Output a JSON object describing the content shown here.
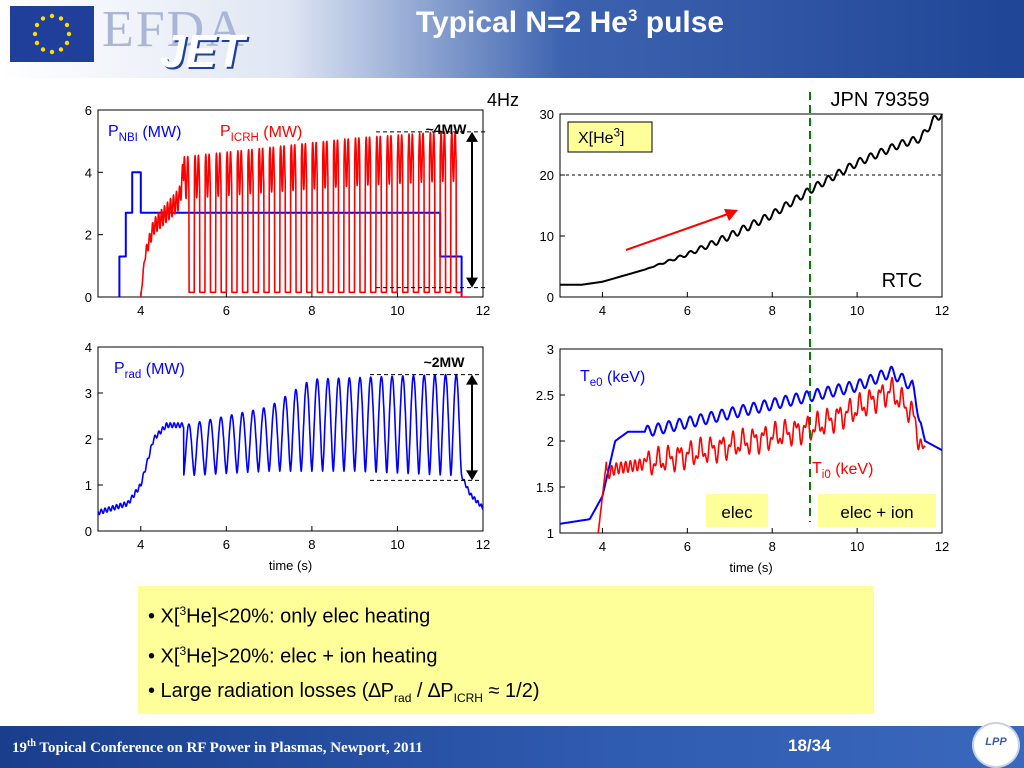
{
  "slide": {
    "title_prefix": "Typical N=2 He",
    "title_sup": "3",
    "title_suffix": " pulse",
    "logo": {
      "efda": "EFDA",
      "jet": "JET"
    },
    "colors": {
      "header_dark": "#1f4596",
      "notes_bg": "#ffff99",
      "red": "#ff0000",
      "blue": "#0000ff",
      "green": "#008000"
    },
    "footer": {
      "conf_num": "19",
      "conf_sup": "th",
      "conf_text": " Topical Conference on RF Power in Plasmas, Newport, 2011",
      "page": "18/34",
      "logo_text": "LPP"
    },
    "notes": [
      {
        "a": "• X[",
        "sup": "3",
        "b": "He]<20%: only elec heating"
      },
      {
        "a": "• X[",
        "sup": "3",
        "b": "He]>20%: elec + ion heating"
      },
      {
        "a": "• Large radiation losses (∆P",
        "sub1": "rad",
        "b": " / ∆P",
        "sub2": "ICRH",
        "c": " ≈ 1/2)"
      }
    ]
  },
  "chart_data": [
    {
      "type": "line",
      "id": "power",
      "xlim": [
        3,
        12
      ],
      "ylim": [
        0,
        6
      ],
      "xticks": [
        4,
        6,
        8,
        10,
        12
      ],
      "yticks": [
        0,
        2,
        4,
        6
      ],
      "series": [
        {
          "name": "P_NBI (MW)",
          "color": "#0000ff",
          "points": [
            [
              3.5,
              0
            ],
            [
              3.5,
              1.3
            ],
            [
              3.65,
              1.3
            ],
            [
              3.65,
              2.7
            ],
            [
              3.8,
              2.7
            ],
            [
              3.8,
              4.0
            ],
            [
              4.0,
              4.0
            ],
            [
              4.0,
              2.7
            ],
            [
              4.2,
              2.7
            ],
            [
              4.2,
              2.7
            ],
            [
              11.0,
              2.7
            ],
            [
              11.0,
              1.3
            ],
            [
              11.5,
              1.3
            ],
            [
              11.5,
              0
            ]
          ]
        },
        {
          "name": "P_ICRH (MW)",
          "color": "#ff0000",
          "modulated": true,
          "envelope": [
            [
              4.0,
              0
            ],
            [
              4.1,
              1.5
            ],
            [
              4.3,
              2.5
            ],
            [
              4.6,
              3.0
            ],
            [
              4.9,
              3.5
            ],
            [
              5.0,
              4.5
            ],
            [
              7.0,
              4.8
            ],
            [
              9.0,
              5.1
            ],
            [
              11.0,
              5.3
            ],
            [
              11.6,
              5.3
            ]
          ],
          "mod_start": 5.0,
          "mod_end": 11.5,
          "mod_hz": 4
        }
      ],
      "annotations": {
        "legend_nbi": "P",
        "legend_nbi_sub": "NBI",
        "legend_nbi_unit": " (MW)",
        "legend_icrh": "P",
        "legend_icrh_sub": "ICRH",
        "legend_icrh_unit": " (MW)",
        "arrow_label": "~4MW",
        "freq_label": "4Hz"
      }
    },
    {
      "type": "line",
      "id": "x_he3",
      "xlim": [
        3,
        12
      ],
      "ylim": [
        0,
        30
      ],
      "xticks": [
        4,
        6,
        8,
        10,
        12
      ],
      "yticks": [
        0,
        10,
        20,
        30
      ],
      "hline": 20,
      "series": [
        {
          "name": "X[He3]",
          "color": "#000000",
          "points": [
            [
              3.0,
              2
            ],
            [
              3.5,
              2
            ],
            [
              4.0,
              2.5
            ],
            [
              5.0,
              4.5
            ],
            [
              6.0,
              7
            ],
            [
              7.0,
              10
            ],
            [
              8.0,
              13.5
            ],
            [
              9.0,
              18
            ],
            [
              10.0,
              22
            ],
            [
              11.0,
              25
            ],
            [
              11.5,
              26
            ],
            [
              11.8,
              29
            ],
            [
              12.0,
              30
            ]
          ]
        }
      ],
      "annotations": {
        "label": "X[He",
        "label_sup": "3",
        "label_end": "]",
        "jpn": "JPN 79359",
        "rtc": "RTC"
      }
    },
    {
      "type": "line",
      "id": "prad",
      "xlim": [
        3,
        12
      ],
      "ylim": [
        0,
        4
      ],
      "xticks": [
        4,
        6,
        8,
        10,
        12
      ],
      "yticks": [
        0,
        1,
        2,
        3,
        4
      ],
      "xlabel": "time (s)",
      "series": [
        {
          "name": "P_rad (MW)",
          "color": "#0000ff",
          "envelope_high": [
            [
              3.0,
              0.4
            ],
            [
              3.7,
              0.6
            ],
            [
              4.0,
              1.0
            ],
            [
              4.3,
              2.0
            ],
            [
              4.6,
              2.3
            ],
            [
              4.9,
              2.3
            ],
            [
              5.0,
              2.3
            ],
            [
              7.0,
              2.7
            ],
            [
              8.0,
              3.3
            ],
            [
              11.0,
              3.4
            ],
            [
              11.5,
              3.4
            ]
          ],
          "envelope_low": [
            [
              5.0,
              1.2
            ],
            [
              7.0,
              1.3
            ],
            [
              9.0,
              1.3
            ],
            [
              11.5,
              1.2
            ]
          ],
          "mod_start": 5.0,
          "mod_end": 11.5,
          "end_points": [
            [
              11.5,
              1.2
            ],
            [
              11.7,
              0.8
            ],
            [
              12.0,
              0.5
            ]
          ]
        }
      ],
      "annotations": {
        "legend": "P",
        "legend_sub": "rad",
        "legend_unit": " (MW)",
        "arrow_label": "~2MW"
      }
    },
    {
      "type": "line",
      "id": "temps",
      "xlim": [
        3,
        12
      ],
      "ylim": [
        1,
        3
      ],
      "xticks": [
        4,
        6,
        8,
        10,
        12
      ],
      "yticks": [
        1,
        1.5,
        2,
        2.5,
        3
      ],
      "ytick_labels": [
        "1",
        "1.5",
        "2",
        "2.5",
        "3"
      ],
      "xlabel": "time (s)",
      "series": [
        {
          "name": "T_e0 (keV)",
          "color": "#0000ff",
          "points": [
            [
              3.0,
              1.1
            ],
            [
              3.7,
              1.15
            ],
            [
              4.0,
              1.4
            ],
            [
              4.3,
              2.0
            ],
            [
              4.6,
              2.1
            ],
            [
              5.0,
              2.1
            ],
            [
              6.0,
              2.2
            ],
            [
              7.0,
              2.3
            ],
            [
              8.0,
              2.4
            ],
            [
              9.0,
              2.5
            ],
            [
              10.0,
              2.6
            ],
            [
              10.8,
              2.75
            ],
            [
              11.3,
              2.6
            ],
            [
              11.6,
              2.0
            ],
            [
              12.0,
              1.9
            ]
          ]
        },
        {
          "name": "T_i0 (keV)",
          "color": "#ff0000",
          "points": [
            [
              3.9,
              1.0
            ],
            [
              4.0,
              1.6
            ],
            [
              4.3,
              1.7
            ],
            [
              5.0,
              1.75
            ],
            [
              6.0,
              1.85
            ],
            [
              7.0,
              1.95
            ],
            [
              8.0,
              2.05
            ],
            [
              9.0,
              2.15
            ],
            [
              10.0,
              2.35
            ],
            [
              10.8,
              2.55
            ],
            [
              11.3,
              2.3
            ],
            [
              11.6,
              1.8
            ]
          ]
        }
      ],
      "annotations": {
        "te_legend": "T",
        "te_sub": "e0",
        "te_unit": " (keV)",
        "ti_legend": "T",
        "ti_sub": "i0",
        "ti_unit": " (keV)",
        "elec": "elec",
        "elec_ion": "elec + ion"
      }
    }
  ]
}
